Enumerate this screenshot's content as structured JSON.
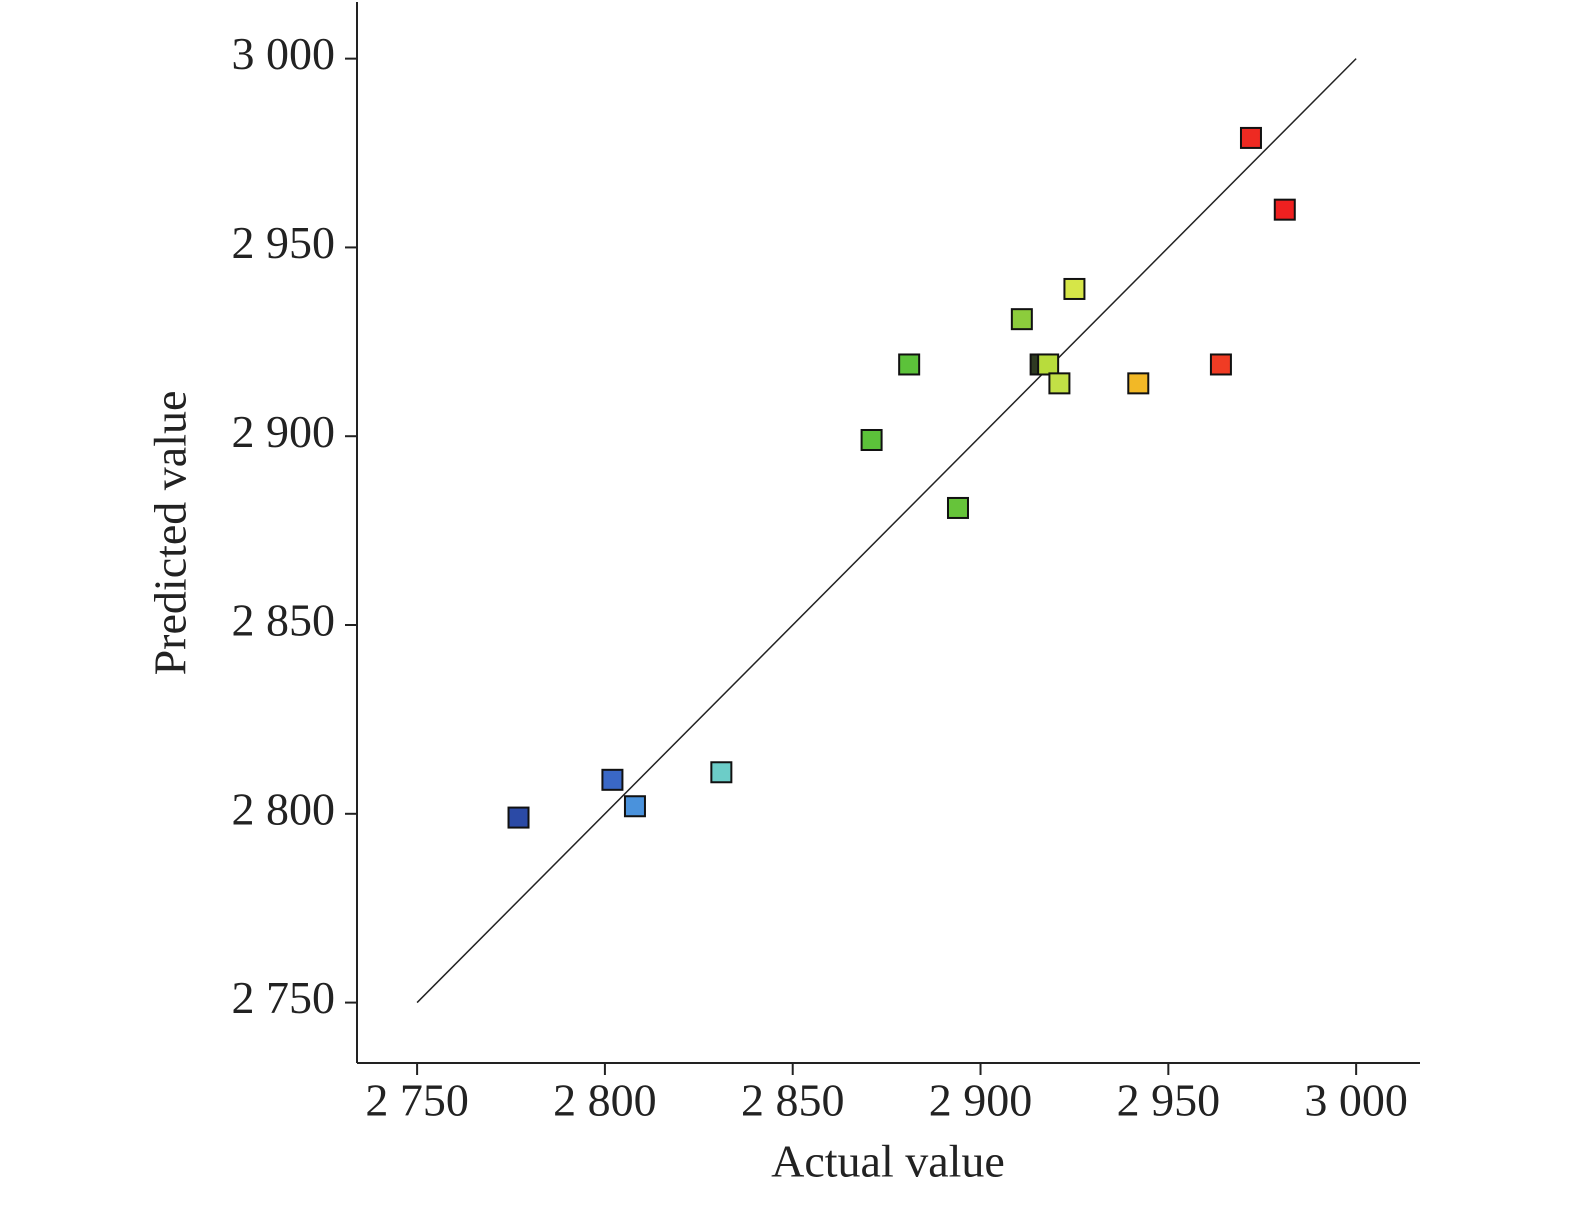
{
  "chart_data": {
    "type": "scatter",
    "x_label": "Actual value",
    "y_label": "Predicted value",
    "x": [
      2777,
      2802,
      2808,
      2831,
      2871,
      2881,
      2894,
      2911,
      2916,
      2918,
      2921,
      2925,
      2942,
      2964,
      2972,
      2981
    ],
    "y": [
      2799,
      2809,
      2802,
      2811,
      2899,
      2919,
      2881,
      2931,
      2919,
      2919,
      2914,
      2939,
      2914,
      2919,
      2979,
      2960
    ],
    "colors": [
      "#2b4aa6",
      "#3a68c6",
      "#4a92dc",
      "#6ccdc8",
      "#5cc23a",
      "#5cc23a",
      "#66c43a",
      "#8ccc3c",
      "#2e3a22",
      "#b8dc3c",
      "#c2e046",
      "#d6e648",
      "#f2b826",
      "#f03c24",
      "#ee2a22",
      "#ee2020"
    ],
    "reference_line": {
      "x": [
        2750,
        3000
      ],
      "y": [
        2750,
        3000
      ]
    },
    "xlim": [
      2734,
      3017
    ],
    "ylim": [
      2734,
      3015
    ],
    "xticks": [
      {
        "value": 2750,
        "label": "2 750"
      },
      {
        "value": 2800,
        "label": "2 800"
      },
      {
        "value": 2850,
        "label": "2 850"
      },
      {
        "value": 2900,
        "label": "2 900"
      },
      {
        "value": 2950,
        "label": "2 950"
      },
      {
        "value": 3000,
        "label": "3 000"
      }
    ],
    "yticks": [
      {
        "value": 2750,
        "label": "2 750"
      },
      {
        "value": 2800,
        "label": "2 800"
      },
      {
        "value": 2850,
        "label": "2 850"
      },
      {
        "value": 2900,
        "label": "2 900"
      },
      {
        "value": 2950,
        "label": "2 950"
      },
      {
        "value": 3000,
        "label": "3 000"
      }
    ],
    "grid": false
  }
}
